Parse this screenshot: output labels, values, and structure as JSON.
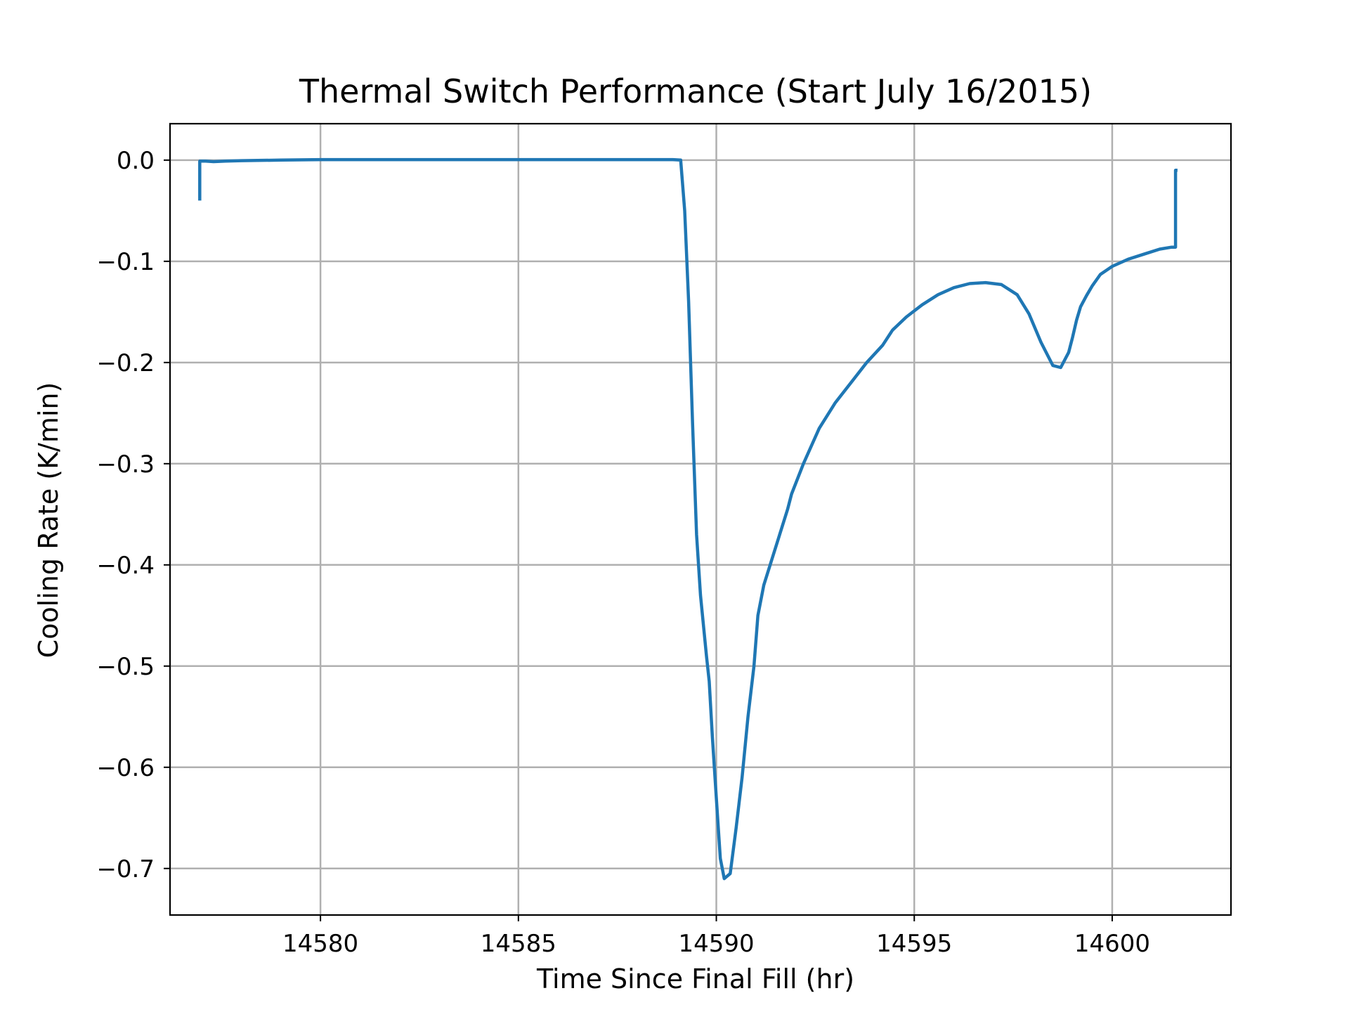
{
  "chart_data": {
    "type": "line",
    "title": "Thermal Switch Performance (Start July 16/2015)",
    "xlabel": "Time Since Final Fill (hr)",
    "ylabel": "Cooling Rate (K/min)",
    "xlim": [
      14576.2,
      14603.0
    ],
    "ylim": [
      -0.746,
      0.036
    ],
    "xticks": [
      14580,
      14585,
      14590,
      14595,
      14600
    ],
    "xtick_labels": [
      "14580",
      "14585",
      "14590",
      "14595",
      "14600"
    ],
    "yticks": [
      0.0,
      -0.1,
      -0.2,
      -0.3,
      -0.4,
      -0.5,
      -0.6,
      -0.7
    ],
    "ytick_labels": [
      "0.0",
      "−0.1",
      "−0.2",
      "−0.3",
      "−0.4",
      "−0.5",
      "−0.6",
      "−0.7"
    ],
    "grid": true,
    "legend": "none",
    "series": [
      {
        "color": "#1f77b4",
        "x": [
          14576.95,
          14576.95,
          14577.1,
          14577.3,
          14577.6,
          14578,
          14579,
          14580,
          14582,
          14584,
          14586,
          14588,
          14588.9,
          14589.1,
          14589.2,
          14589.3,
          14589.4,
          14589.5,
          14589.6,
          14589.75,
          14589.82,
          14589.9,
          14590.0,
          14590.1,
          14590.2,
          14590.35,
          14590.5,
          14590.65,
          14590.8,
          14590.95,
          14591.05,
          14591.2,
          14591.4,
          14591.6,
          14591.8,
          14591.9,
          14592.2,
          14592.6,
          14593.0,
          14593.4,
          14593.8,
          14594.2,
          14594.45,
          14594.8,
          14595.2,
          14595.6,
          14596.0,
          14596.4,
          14596.8,
          14597.2,
          14597.6,
          14597.9,
          14598.2,
          14598.5,
          14598.7,
          14598.9,
          14599.0,
          14599.1,
          14599.2,
          14599.35,
          14599.5,
          14599.7,
          14600.0,
          14600.4,
          14600.8,
          14601.2,
          14601.5,
          14601.6,
          14601.6,
          14601.65
        ],
        "values": [
          -0.04,
          -0.001,
          -0.001,
          -0.0015,
          -0.001,
          -0.0005,
          0.0,
          0.0005,
          0.0005,
          0.0005,
          0.0005,
          0.0005,
          0.0005,
          0.0,
          -0.05,
          -0.14,
          -0.26,
          -0.37,
          -0.43,
          -0.49,
          -0.515,
          -0.57,
          -0.63,
          -0.69,
          -0.71,
          -0.705,
          -0.66,
          -0.61,
          -0.55,
          -0.5,
          -0.45,
          -0.42,
          -0.395,
          -0.37,
          -0.345,
          -0.33,
          -0.3,
          -0.265,
          -0.24,
          -0.22,
          -0.2,
          -0.183,
          -0.168,
          -0.155,
          -0.143,
          -0.133,
          -0.126,
          -0.122,
          -0.121,
          -0.123,
          -0.133,
          -0.152,
          -0.18,
          -0.203,
          -0.205,
          -0.19,
          -0.175,
          -0.158,
          -0.145,
          -0.134,
          -0.124,
          -0.113,
          -0.105,
          -0.098,
          -0.093,
          -0.088,
          -0.086,
          -0.086,
          -0.01,
          -0.01
        ]
      }
    ]
  }
}
